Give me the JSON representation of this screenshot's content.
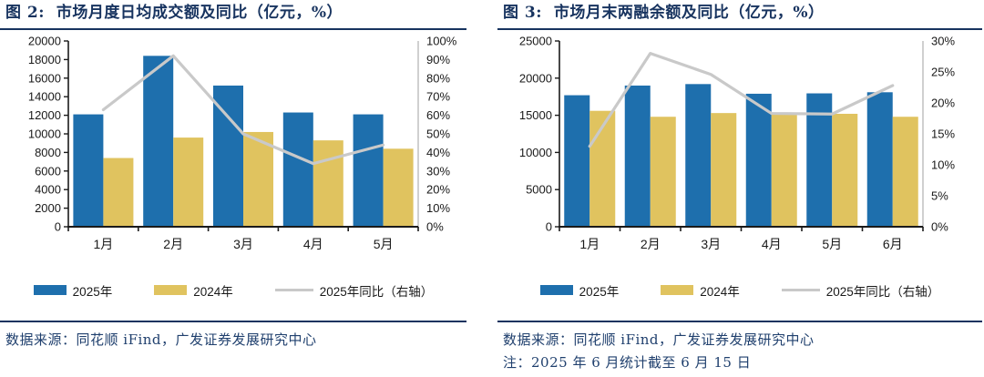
{
  "colors": {
    "bar_2025": "#1E6FAD",
    "bar_2024": "#E0C35F",
    "line_yoy": "#C9C9C9",
    "axis": "#1A1A1A",
    "right_axis_line": "#C4C4C4",
    "navy": "#17335F"
  },
  "panels": [
    {
      "title": "图 2:  市场月度日均成交额及同比（亿元，%）",
      "source": "数据来源：同花顺 iFind，广发证券发展研究中心",
      "note": ""
    },
    {
      "title": "图 3:  市场月末两融余额及同比（亿元，%）",
      "source": "数据来源：同花顺 iFind，广发证券发展研究中心",
      "note": "注：2025 年 6 月统计截至 6 月 15 日"
    }
  ],
  "chart_data": [
    {
      "type": "bar",
      "title": "市场月度日均成交额及同比（亿元，%）",
      "categories": [
        "1月",
        "2月",
        "3月",
        "4月",
        "5月"
      ],
      "series": [
        {
          "name": "2025年",
          "type": "bar",
          "axis": "left",
          "values": [
            12100,
            18400,
            15200,
            12300,
            12100
          ]
        },
        {
          "name": "2024年",
          "type": "bar",
          "axis": "left",
          "values": [
            7400,
            9600,
            10200,
            9300,
            8400
          ]
        },
        {
          "name": "2025年同比（右轴）",
          "type": "line",
          "axis": "right",
          "values": [
            63,
            92,
            50,
            34,
            44
          ]
        }
      ],
      "left_axis": {
        "min": 0,
        "max": 20000,
        "step": 2000,
        "suffix": ""
      },
      "right_axis": {
        "min": 0,
        "max": 100,
        "step": 10,
        "suffix": "%"
      },
      "grid": false,
      "legend_position": "bottom"
    },
    {
      "type": "bar",
      "title": "市场月末两融余额及同比（亿元，%）",
      "categories": [
        "1月",
        "2月",
        "3月",
        "4月",
        "5月",
        "6月"
      ],
      "series": [
        {
          "name": "2025年",
          "type": "bar",
          "axis": "left",
          "values": [
            17700,
            19000,
            19200,
            17900,
            17950,
            18100
          ]
        },
        {
          "name": "2024年",
          "type": "bar",
          "axis": "left",
          "values": [
            15600,
            14800,
            15300,
            15100,
            15200,
            14800
          ]
        },
        {
          "name": "2025年同比（右轴）",
          "type": "line",
          "axis": "right",
          "values": [
            13,
            28,
            24.6,
            18.3,
            18.2,
            22.8
          ]
        }
      ],
      "left_axis": {
        "min": 0,
        "max": 25000,
        "step": 5000,
        "suffix": ""
      },
      "right_axis": {
        "min": 0,
        "max": 30,
        "step": 5,
        "suffix": "%"
      },
      "grid": false,
      "legend_position": "bottom"
    }
  ]
}
